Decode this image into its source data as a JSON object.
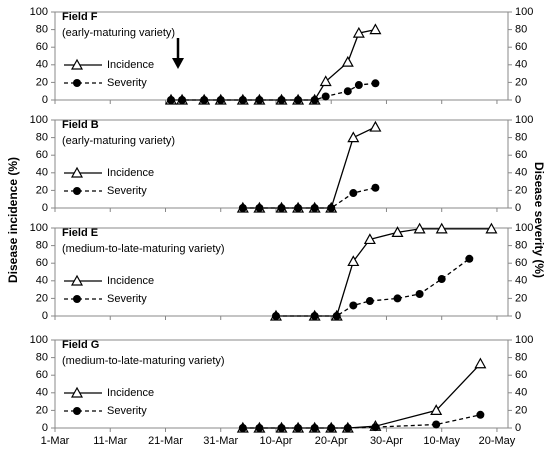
{
  "ylabel": "Disease incidence (%)",
  "y2label": "Disease severity (%)",
  "chart_data": [
    {
      "type": "line",
      "title": "Field F",
      "subtitle": "(early-maturing variety)",
      "xlim": [
        "1-Mar",
        "22-May"
      ],
      "ylim": [
        0,
        100
      ],
      "yticks": [
        0,
        20,
        40,
        60,
        80,
        100
      ],
      "y2lim": [
        0,
        100
      ],
      "y2ticks": [
        0,
        20,
        40,
        60,
        80,
        100
      ],
      "series": [
        {
          "name": "Incidence",
          "color": "#000000",
          "marker": "triangle",
          "dashed": false,
          "x": [
            "22-Mar",
            "24-Mar",
            "28-Mar",
            "31-Mar",
            "4-Apr",
            "7-Apr",
            "11-Apr",
            "14-Apr",
            "17-Apr",
            "19-Apr",
            "23-Apr",
            "25-Apr",
            "28-Apr"
          ],
          "values": [
            0,
            0,
            0,
            0,
            0,
            0,
            0,
            0,
            0,
            21,
            43,
            76,
            80
          ]
        },
        {
          "name": "Severity",
          "color": "#000000",
          "marker": "circle",
          "dashed": true,
          "axis": "y2",
          "x": [
            "22-Mar",
            "24-Mar",
            "28-Mar",
            "31-Mar",
            "4-Apr",
            "7-Apr",
            "11-Apr",
            "14-Apr",
            "17-Apr",
            "19-Apr",
            "23-Apr",
            "25-Apr",
            "28-Apr"
          ],
          "values": [
            0,
            0,
            0,
            0,
            0,
            0,
            0,
            0,
            0,
            4,
            10,
            17,
            19
          ]
        }
      ]
    },
    {
      "type": "line",
      "title": "Field B",
      "subtitle": "(early-maturing variety)",
      "xlim": [
        "1-Mar",
        "22-May"
      ],
      "ylim": [
        0,
        100
      ],
      "yticks": [
        0,
        20,
        40,
        60,
        80,
        100
      ],
      "y2lim": [
        0,
        100
      ],
      "y2ticks": [
        0,
        20,
        40,
        60,
        80,
        100
      ],
      "series": [
        {
          "name": "Incidence",
          "color": "#000000",
          "marker": "triangle",
          "dashed": false,
          "x": [
            "4-Apr",
            "7-Apr",
            "11-Apr",
            "14-Apr",
            "17-Apr",
            "20-Apr",
            "24-Apr",
            "28-Apr"
          ],
          "values": [
            0,
            0,
            0,
            0,
            0,
            0,
            80,
            92
          ]
        },
        {
          "name": "Severity",
          "color": "#000000",
          "marker": "circle",
          "dashed": true,
          "axis": "y2",
          "x": [
            "4-Apr",
            "7-Apr",
            "11-Apr",
            "14-Apr",
            "17-Apr",
            "20-Apr",
            "24-Apr",
            "28-Apr"
          ],
          "values": [
            0,
            0,
            0,
            0,
            0,
            0,
            17,
            23
          ]
        }
      ]
    },
    {
      "type": "line",
      "title": "Field E",
      "subtitle": "(medium-to-late-maturing variety)",
      "xlim": [
        "1-Mar",
        "22-May"
      ],
      "ylim": [
        0,
        100
      ],
      "yticks": [
        0,
        20,
        40,
        60,
        80,
        100
      ],
      "y2lim": [
        0,
        100
      ],
      "y2ticks": [
        0,
        20,
        40,
        60,
        80,
        100
      ],
      "series": [
        {
          "name": "Incidence",
          "color": "#000000",
          "marker": "triangle",
          "dashed": false,
          "x": [
            "10-Apr",
            "17-Apr",
            "21-Apr",
            "24-Apr",
            "27-Apr",
            "2-May",
            "6-May",
            "10-May",
            "19-May"
          ],
          "values": [
            0,
            0,
            0,
            62,
            87,
            95,
            99,
            99,
            99
          ]
        },
        {
          "name": "Severity",
          "color": "#000000",
          "marker": "circle",
          "dashed": true,
          "axis": "y2",
          "x": [
            "10-Apr",
            "17-Apr",
            "21-Apr",
            "24-Apr",
            "27-Apr",
            "2-May",
            "6-May",
            "10-May",
            "15-May"
          ],
          "values": [
            0,
            0,
            0,
            12,
            17,
            20,
            25,
            42,
            65
          ]
        }
      ]
    },
    {
      "type": "line",
      "title": "Field G",
      "subtitle": "(medium-to-late-maturing variety)",
      "xlim": [
        "1-Mar",
        "22-May"
      ],
      "ylim": [
        0,
        100
      ],
      "yticks": [
        0,
        20,
        40,
        60,
        80,
        100
      ],
      "y2lim": [
        0,
        100
      ],
      "y2ticks": [
        0,
        20,
        40,
        60,
        80,
        100
      ],
      "xticks": [
        "1-Mar",
        "11-Mar",
        "21-Mar",
        "31-Mar",
        "10-Apr",
        "20-Apr",
        "30-Apr",
        "10-May",
        "20-May"
      ],
      "series": [
        {
          "name": "Incidence",
          "color": "#000000",
          "marker": "triangle",
          "dashed": false,
          "x": [
            "4-Apr",
            "7-Apr",
            "11-Apr",
            "14-Apr",
            "17-Apr",
            "20-Apr",
            "23-Apr",
            "28-Apr",
            "9-May",
            "17-May"
          ],
          "values": [
            0,
            0,
            0,
            0,
            0,
            0,
            0,
            2,
            20,
            73
          ]
        },
        {
          "name": "Severity",
          "color": "#000000",
          "marker": "circle",
          "dashed": true,
          "axis": "y2",
          "x": [
            "4-Apr",
            "7-Apr",
            "11-Apr",
            "14-Apr",
            "17-Apr",
            "20-Apr",
            "23-Apr",
            "28-Apr",
            "9-May",
            "17-May"
          ],
          "values": [
            0,
            0,
            0,
            0,
            0,
            0,
            0,
            1,
            4,
            15
          ]
        }
      ]
    }
  ]
}
